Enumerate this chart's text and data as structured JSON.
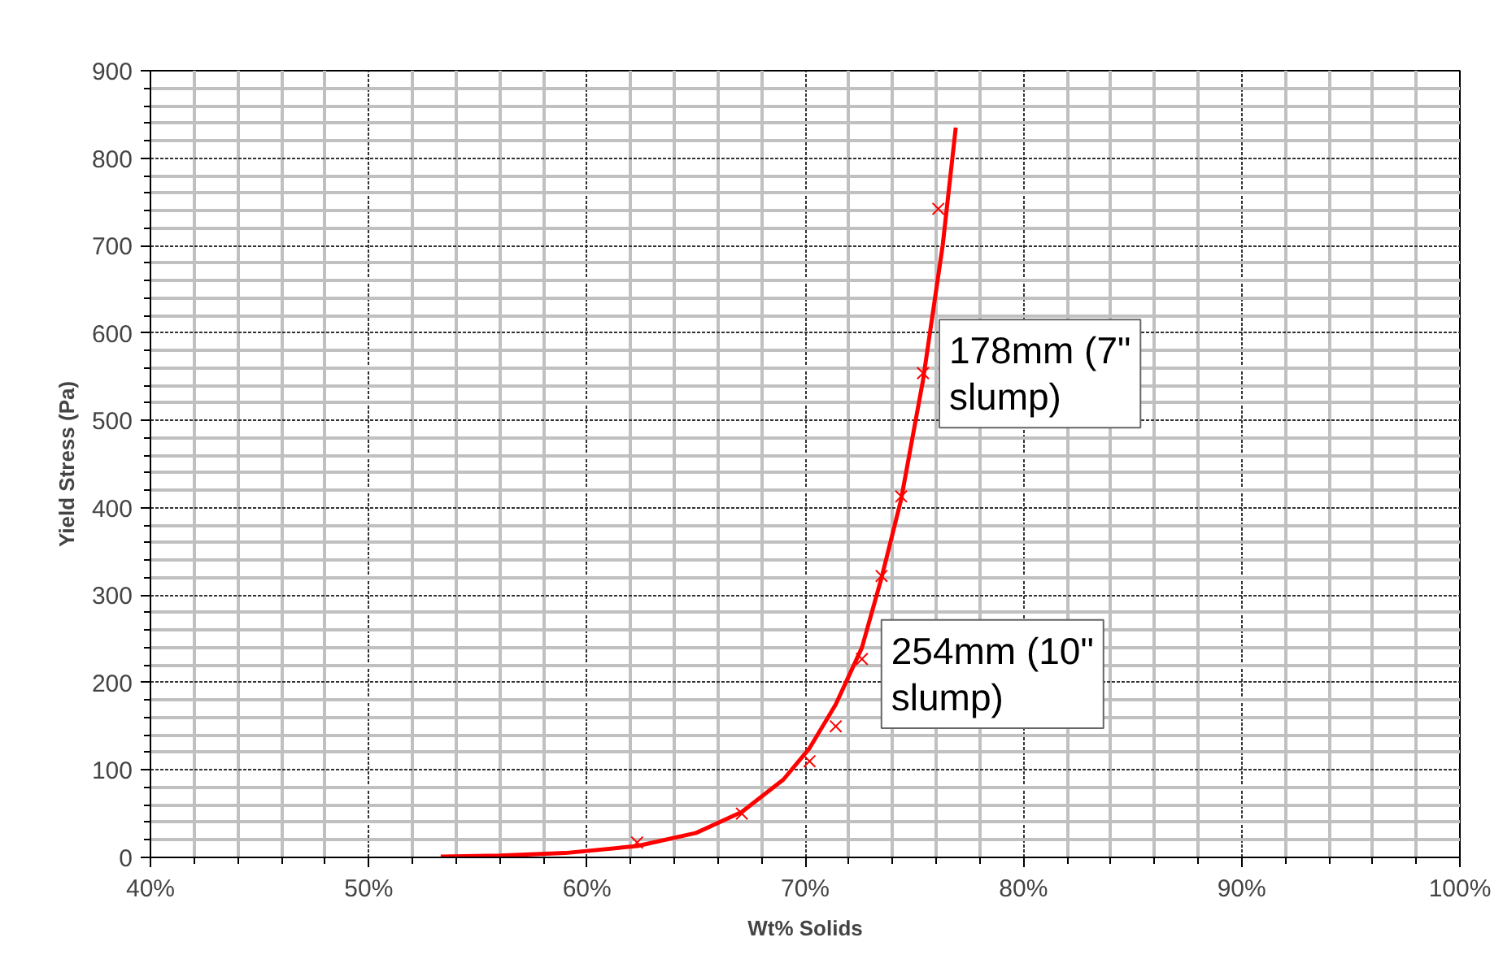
{
  "chart_data": {
    "type": "scatter",
    "xlabel": "Wt% Solids",
    "ylabel": "Yield Stress (Pa)",
    "series": [
      {
        "type": "scatter",
        "color": "#ff0000",
        "marker": "cross",
        "x": [
          62.3,
          67.1,
          70.2,
          71.4,
          72.6,
          73.5,
          74.4,
          75.4,
          76.1
        ],
        "values": [
          17,
          50,
          110,
          150,
          227,
          322,
          413,
          554,
          742
        ]
      },
      {
        "type": "line",
        "color": "#ff0000",
        "marker": "none",
        "line_style": "solid",
        "x": [
          53.3,
          56,
          59,
          62.3,
          65,
          67.1,
          69,
          70.2,
          71.4,
          72.6,
          73.5,
          74.4,
          75.4,
          76.3,
          76.9
        ],
        "values": [
          1,
          2,
          5,
          13,
          28,
          52,
          89,
          125,
          175,
          240,
          320,
          410,
          546,
          700,
          835
        ]
      }
    ],
    "xlim": [
      40,
      100
    ],
    "ylim": [
      0,
      900
    ],
    "xticks": [
      {
        "value": 40,
        "label": "40%"
      },
      {
        "value": 50,
        "label": "50%"
      },
      {
        "value": 60,
        "label": "60%"
      },
      {
        "value": 70,
        "label": "70%"
      },
      {
        "value": 80,
        "label": "80%"
      },
      {
        "value": 90,
        "label": "90%"
      },
      {
        "value": 100,
        "label": "100%"
      }
    ],
    "yticks": [
      0,
      100,
      200,
      300,
      400,
      500,
      600,
      700,
      800,
      900
    ],
    "grid": true,
    "annotations": [
      {
        "text": "178mm (7\"\nslump)",
        "x": 75.4,
        "y": 554
      },
      {
        "text": "254mm (10\"\nslump)",
        "x": 72.6,
        "y": 227
      }
    ]
  }
}
